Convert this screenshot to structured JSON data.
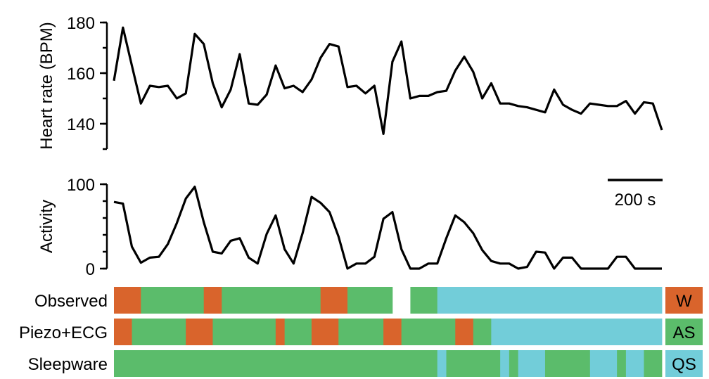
{
  "chart_data": [
    {
      "type": "line",
      "title": "",
      "ylabel": "Heart rate (BPM)",
      "ylim": [
        130,
        180
      ],
      "yticks": [
        140,
        160,
        180
      ],
      "series": [
        {
          "values": [
            157,
            178,
            163,
            148,
            155,
            154.5,
            155,
            150,
            152,
            175.5,
            171.5,
            156,
            146.5,
            153.5,
            167.5,
            148,
            147.5,
            151.5,
            163,
            154,
            155,
            152.5,
            157.5,
            166,
            171.5,
            170.5,
            154.5,
            155,
            152,
            155,
            136,
            164.5,
            172.5,
            150,
            151,
            151,
            152.5,
            153,
            161,
            166.5,
            160.5,
            150,
            156,
            148,
            148,
            147,
            146.5,
            145.5,
            144.5,
            153.5,
            147.5,
            145.5,
            144,
            148,
            147.5,
            147,
            147,
            149,
            144,
            148.5,
            148,
            137.5
          ]
        }
      ],
      "scale_bar": {
        "label": "200 s"
      }
    },
    {
      "type": "line",
      "ylabel": "Activity",
      "ylim": [
        0,
        100
      ],
      "yticks": [
        0,
        100
      ],
      "series": [
        {
          "values": [
            79,
            77,
            26,
            7,
            13,
            14,
            29,
            54,
            83,
            97,
            55,
            20,
            18,
            33,
            36,
            13,
            6,
            41,
            63,
            23,
            6,
            42,
            85,
            78,
            67,
            38,
            0,
            6,
            6,
            14,
            59,
            67,
            23,
            0,
            0,
            6,
            6,
            36,
            63,
            55,
            42,
            22,
            9,
            6,
            6,
            0,
            2,
            20,
            19,
            0,
            13,
            13,
            0,
            0,
            0,
            0,
            14,
            14,
            0,
            0,
            0,
            0
          ]
        }
      ]
    },
    {
      "type": "table",
      "rows": [
        "Observed",
        "Piezo+ECG",
        "Sleepware"
      ],
      "legend": [
        {
          "label": "W",
          "color": "#d9642c"
        },
        {
          "label": "AS",
          "color": "#5bbc6b"
        },
        {
          "label": "QS",
          "color": "#72cdd9"
        }
      ],
      "row_label_colors": [
        "#000000",
        "#e64fe6",
        "#000000"
      ],
      "segments": [
        [
          {
            "state": "W",
            "start": 0,
            "end": 3
          },
          {
            "state": "AS",
            "start": 3,
            "end": 10
          },
          {
            "state": "W",
            "start": 10,
            "end": 12
          },
          {
            "state": "AS",
            "start": 12,
            "end": 23
          },
          {
            "state": "W",
            "start": 23,
            "end": 26
          },
          {
            "state": "AS",
            "start": 26,
            "end": 28
          },
          {
            "state": "AS",
            "start": 28,
            "end": 31
          },
          {
            "state": "AS",
            "start": 33,
            "end": 36
          },
          {
            "state": "QS",
            "start": 36,
            "end": 61
          }
        ],
        [
          {
            "state": "W",
            "start": 0,
            "end": 2
          },
          {
            "state": "AS",
            "start": 2,
            "end": 8
          },
          {
            "state": "W",
            "start": 8,
            "end": 11
          },
          {
            "state": "AS",
            "start": 11,
            "end": 18
          },
          {
            "state": "W",
            "start": 18,
            "end": 19
          },
          {
            "state": "AS",
            "start": 19,
            "end": 22
          },
          {
            "state": "W",
            "start": 22,
            "end": 25
          },
          {
            "state": "AS",
            "start": 25,
            "end": 30
          },
          {
            "state": "W",
            "start": 30,
            "end": 32
          },
          {
            "state": "AS",
            "start": 32,
            "end": 38
          },
          {
            "state": "W",
            "start": 38,
            "end": 40
          },
          {
            "state": "AS",
            "start": 40,
            "end": 42
          },
          {
            "state": "QS",
            "start": 42,
            "end": 61
          }
        ],
        [
          {
            "state": "AS",
            "start": 0,
            "end": 36
          },
          {
            "state": "QS",
            "start": 36,
            "end": 37
          },
          {
            "state": "AS",
            "start": 37,
            "end": 43
          },
          {
            "state": "QS",
            "start": 43,
            "end": 44
          },
          {
            "state": "AS",
            "start": 44,
            "end": 45
          },
          {
            "state": "QS",
            "start": 45,
            "end": 48
          },
          {
            "state": "AS",
            "start": 48,
            "end": 53
          },
          {
            "state": "QS",
            "start": 53,
            "end": 56
          },
          {
            "state": "AS",
            "start": 56,
            "end": 57
          },
          {
            "state": "QS",
            "start": 57,
            "end": 59
          },
          {
            "state": "AS",
            "start": 59,
            "end": 61
          }
        ]
      ]
    }
  ]
}
